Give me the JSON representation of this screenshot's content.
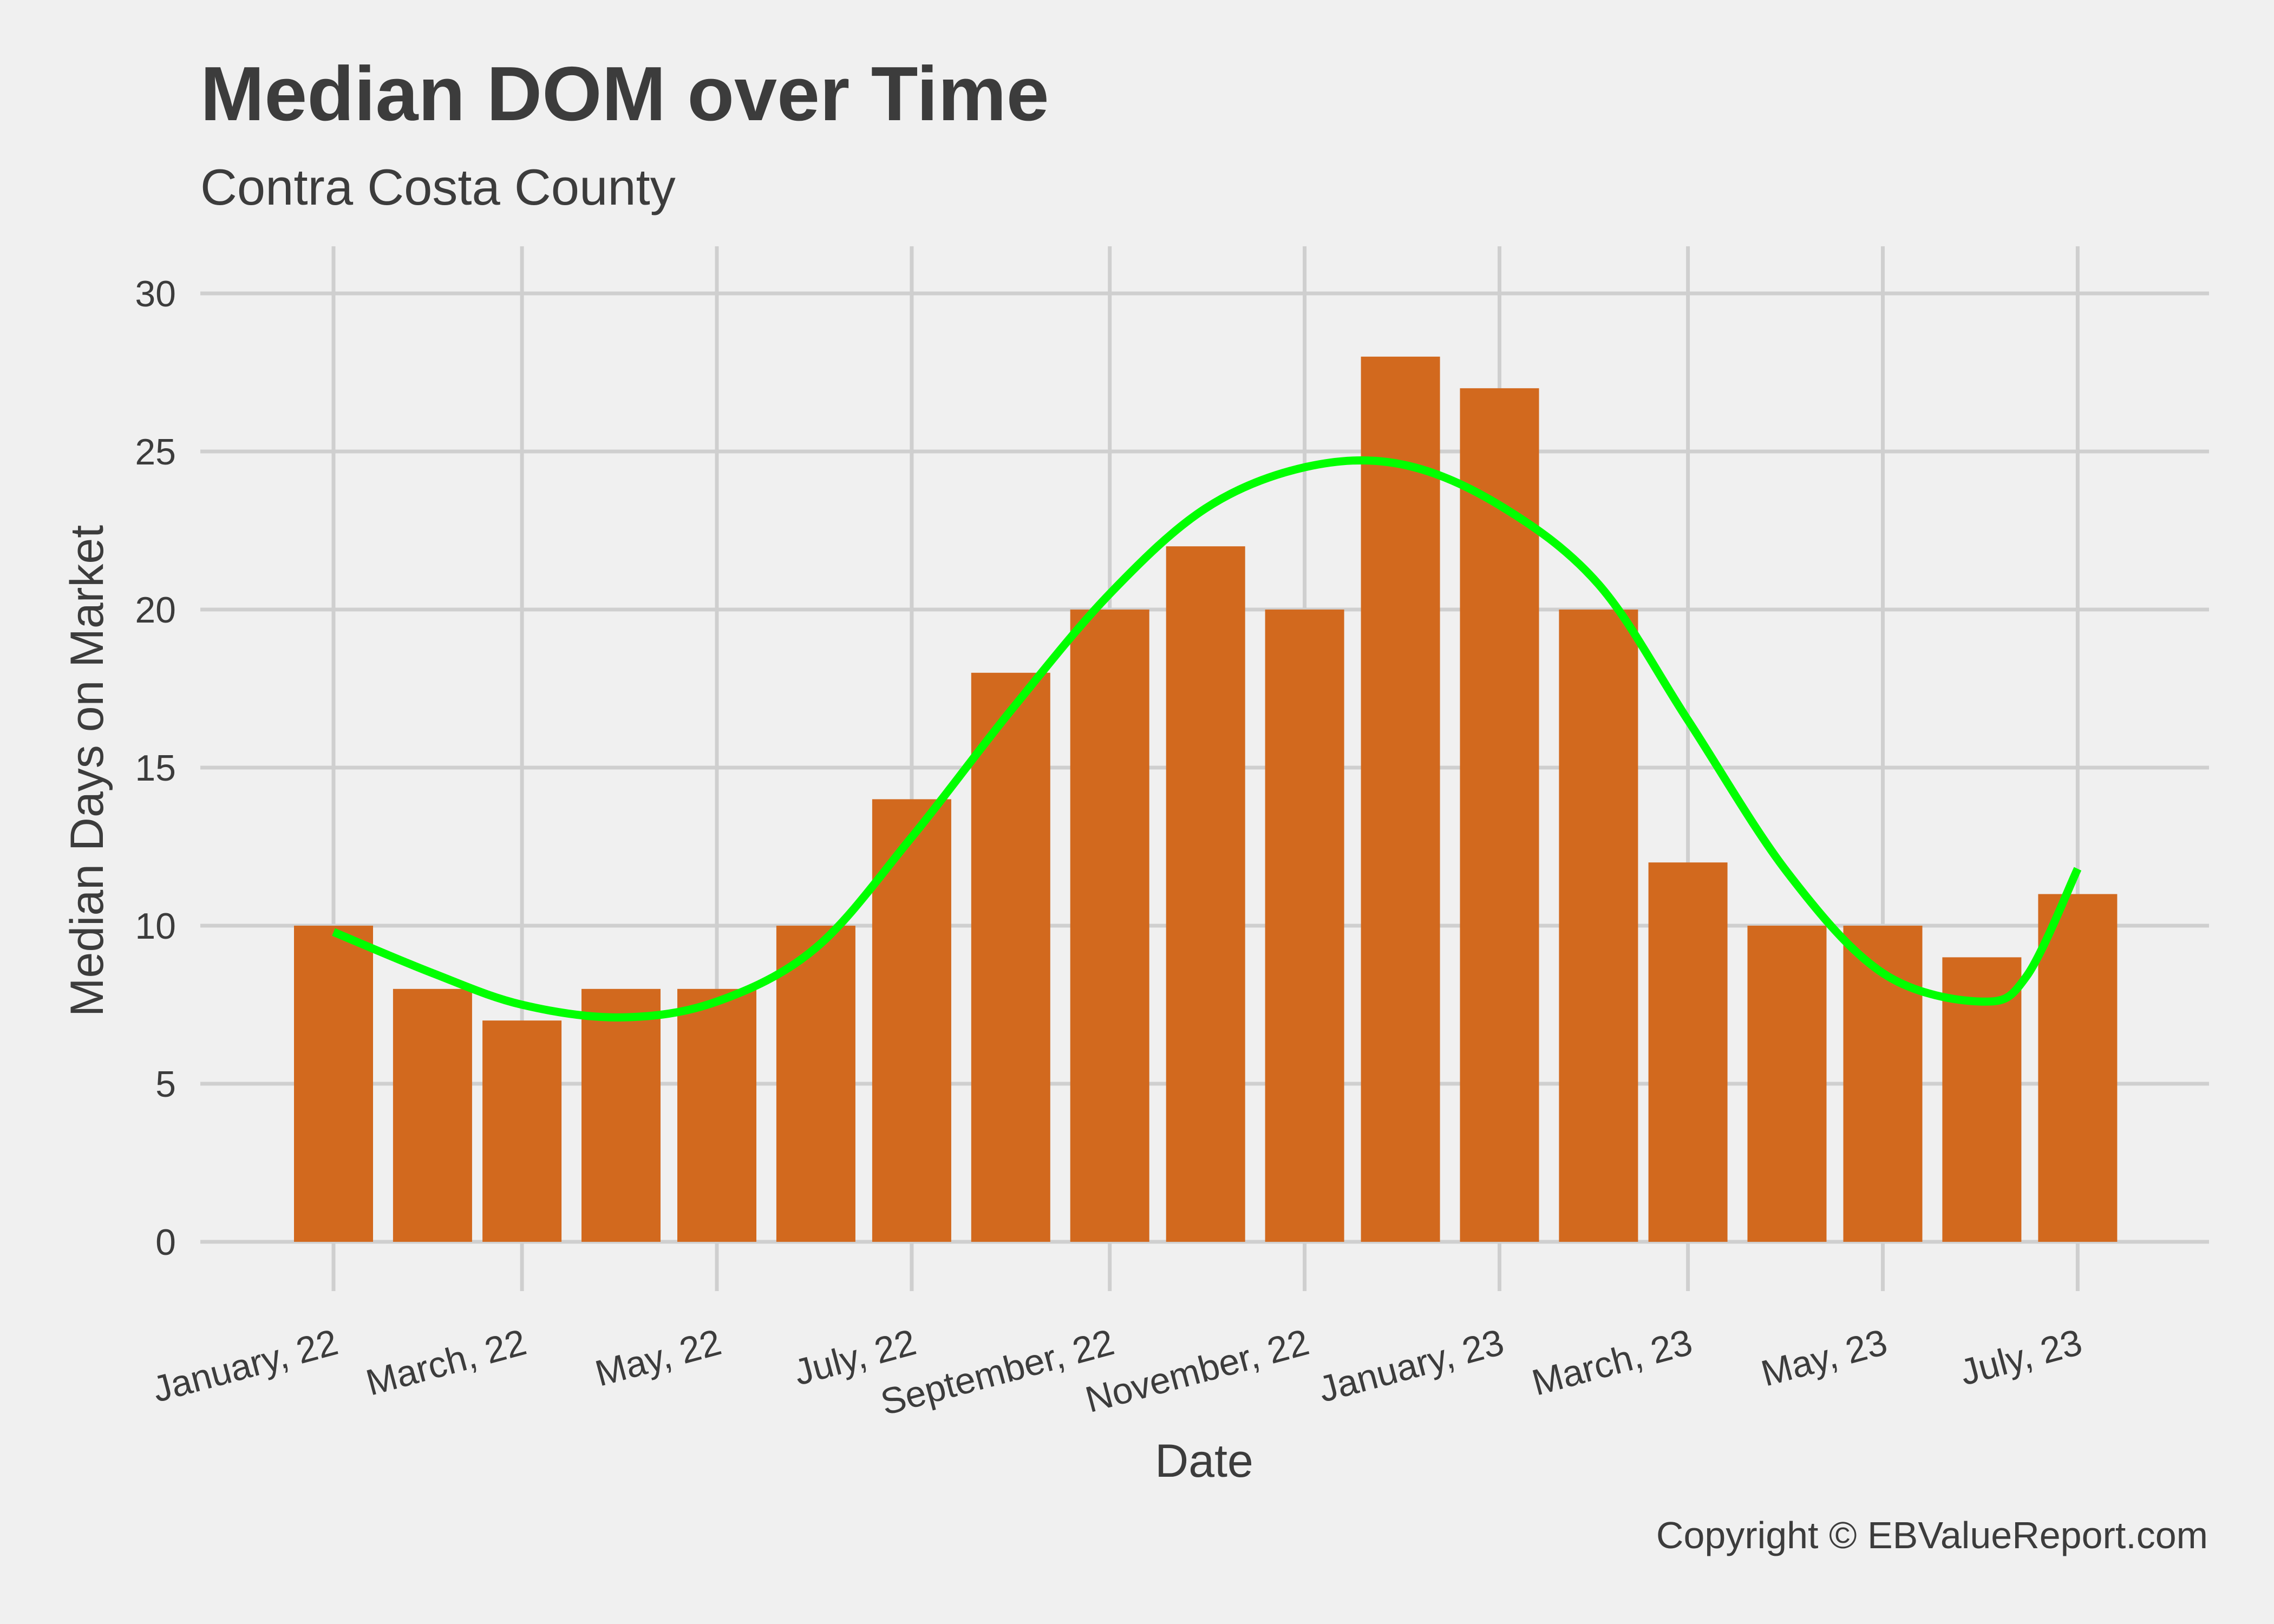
{
  "chart_data": {
    "type": "bar",
    "title": "Median DOM over Time",
    "subtitle": "Contra Costa County",
    "xlabel": "Date",
    "ylabel": "Median Days on Market",
    "caption": "Copyright  © EBValueReport.com",
    "ylim": [
      0,
      31.5
    ],
    "yticks": [
      0,
      5,
      10,
      15,
      20,
      25,
      30
    ],
    "x_tick_labels": [
      {
        "date": "2022-01-01",
        "label": "January, 22"
      },
      {
        "date": "2022-03-01",
        "label": "March, 22"
      },
      {
        "date": "2022-05-01",
        "label": "May, 22"
      },
      {
        "date": "2022-07-01",
        "label": "July, 22"
      },
      {
        "date": "2022-09-01",
        "label": "September, 22"
      },
      {
        "date": "2022-11-01",
        "label": "November, 22"
      },
      {
        "date": "2023-01-01",
        "label": "January, 23"
      },
      {
        "date": "2023-03-01",
        "label": "March, 23"
      },
      {
        "date": "2023-05-01",
        "label": "May, 23"
      },
      {
        "date": "2023-07-01",
        "label": "July, 23"
      }
    ],
    "categories": [
      "2022-01-01",
      "2022-02-01",
      "2022-03-01",
      "2022-04-01",
      "2022-05-01",
      "2022-06-01",
      "2022-07-01",
      "2022-08-01",
      "2022-09-01",
      "2022-10-01",
      "2022-11-01",
      "2022-12-01",
      "2023-01-01",
      "2023-02-01",
      "2023-03-01",
      "2023-04-01",
      "2023-05-01",
      "2023-06-01",
      "2023-07-01"
    ],
    "values": [
      10,
      8,
      7,
      8,
      8,
      10,
      14,
      18,
      20,
      22,
      20,
      28,
      27,
      20,
      12,
      10,
      10,
      9,
      11
    ],
    "trend": [
      {
        "date": "2022-01-01",
        "value": 9.8
      },
      {
        "date": "2022-02-01",
        "value": 8.5
      },
      {
        "date": "2022-03-01",
        "value": 7.5
      },
      {
        "date": "2022-04-01",
        "value": 7.1
      },
      {
        "date": "2022-05-01",
        "value": 7.6
      },
      {
        "date": "2022-06-01",
        "value": 9.3
      },
      {
        "date": "2022-07-01",
        "value": 12.8
      },
      {
        "date": "2022-08-01",
        "value": 16.8
      },
      {
        "date": "2022-09-01",
        "value": 20.5
      },
      {
        "date": "2022-10-01",
        "value": 23.2
      },
      {
        "date": "2022-11-01",
        "value": 24.5
      },
      {
        "date": "2022-12-01",
        "value": 24.6
      },
      {
        "date": "2023-01-01",
        "value": 23.3
      },
      {
        "date": "2023-02-01",
        "value": 20.8
      },
      {
        "date": "2023-03-01",
        "value": 16.5
      },
      {
        "date": "2023-04-01",
        "value": 11.7
      },
      {
        "date": "2023-05-01",
        "value": 8.5
      },
      {
        "date": "2023-06-01",
        "value": 7.6
      },
      {
        "date": "2023-06-15",
        "value": 8.4
      },
      {
        "date": "2023-07-01",
        "value": 11.8
      }
    ],
    "colors": {
      "background": "#f0f0f0",
      "bar": "#d2691e",
      "trend": "#00ff00",
      "grid": "#cfcfcf",
      "text": "#3c3c3c"
    },
    "grid": true
  }
}
